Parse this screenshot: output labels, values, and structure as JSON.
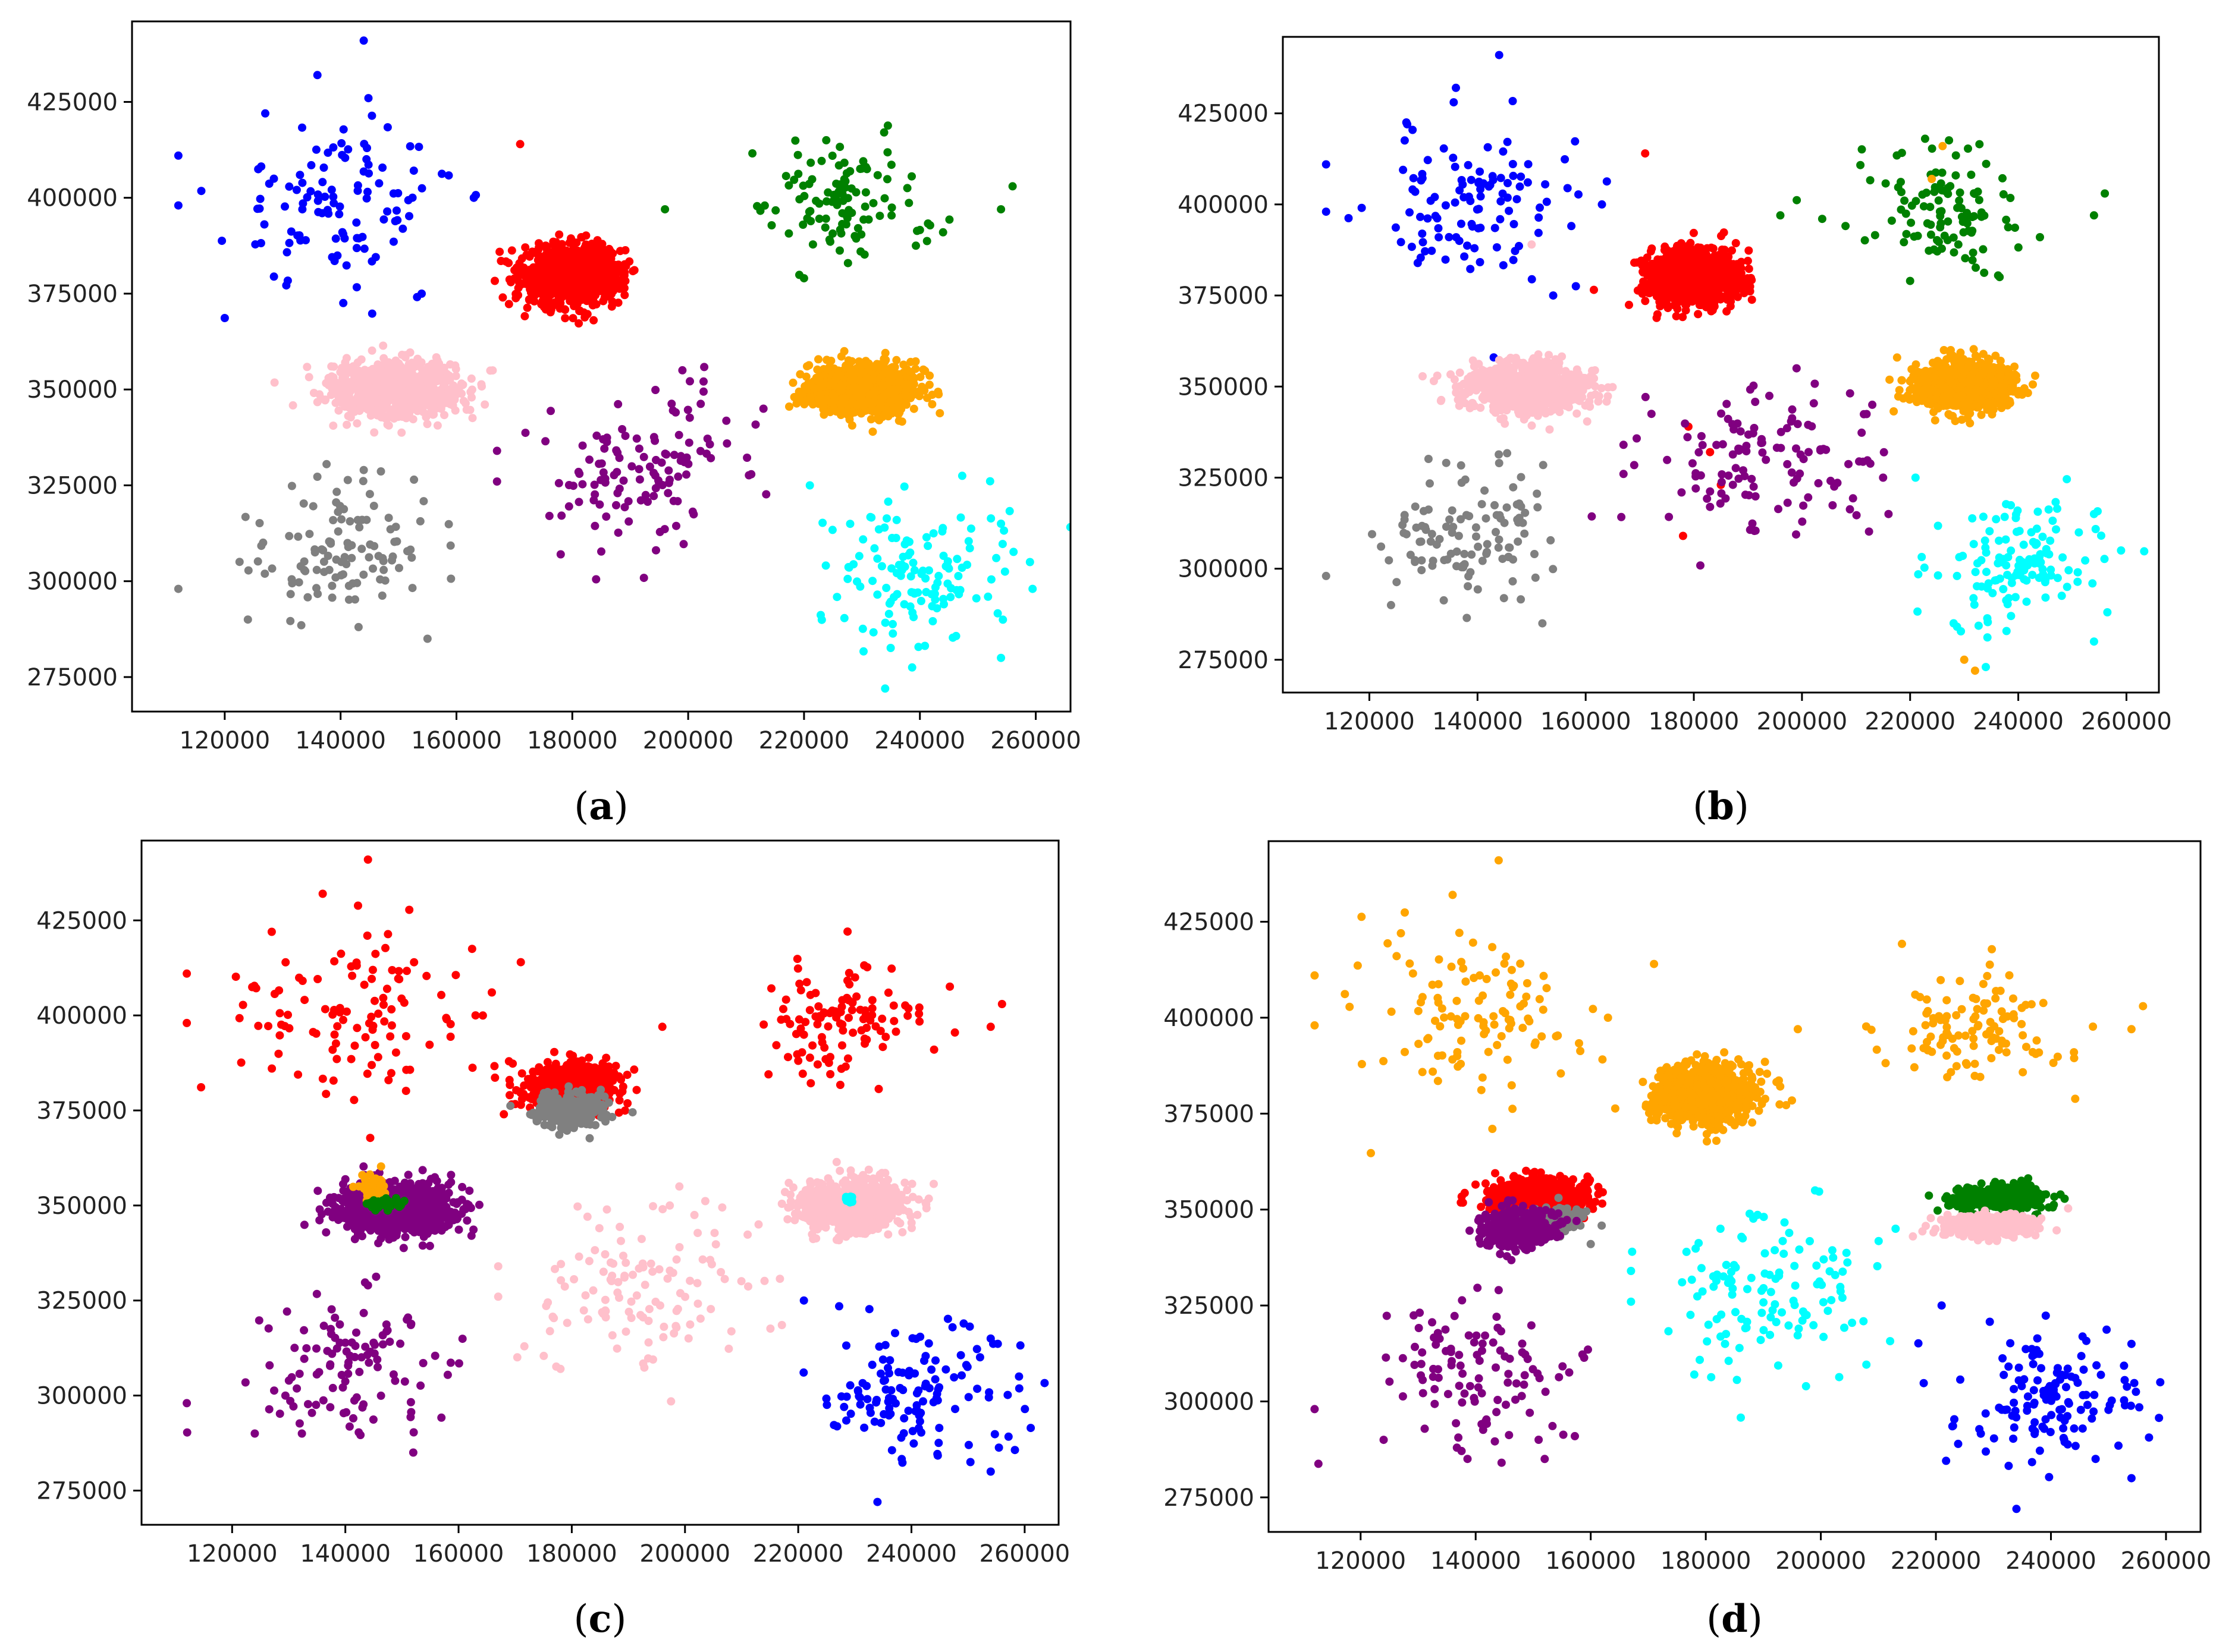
{
  "figure_title": "",
  "chart_data": [
    {
      "id": "a",
      "type": "scatter",
      "caption": {
        "open": "(",
        "letter": "a",
        "close": ")"
      },
      "xlim": [
        104000,
        266000
      ],
      "ylim": [
        266000,
        446000
      ],
      "x_ticks": [
        120000,
        140000,
        160000,
        180000,
        200000,
        220000,
        240000,
        260000
      ],
      "y_ticks": [
        275000,
        300000,
        325000,
        350000,
        375000,
        400000,
        425000
      ],
      "clusters": [
        {
          "color": "#0000ff",
          "name": "blue",
          "cx": 140000,
          "cy": 399000,
          "sx": 10000,
          "sy": 11000,
          "n": 110,
          "extra": [
            [
              112000,
              411000
            ],
            [
              112000,
              398000
            ],
            [
              144000,
              441000
            ],
            [
              136000,
              432000
            ],
            [
              127000,
              422000
            ],
            [
              163000,
              400000
            ],
            [
              154000,
              375000
            ]
          ]
        },
        {
          "color": "#ff0000",
          "name": "red",
          "cx": 180000,
          "cy": 380000,
          "sx": 4200,
          "sy": 3800,
          "n": 900,
          "extra": [
            [
              171000,
              414000
            ],
            [
              168000,
              374000
            ],
            [
              169000,
              383000
            ]
          ]
        },
        {
          "color": "#008000",
          "name": "green",
          "cx": 227000,
          "cy": 398000,
          "sx": 7000,
          "sy": 8000,
          "n": 110,
          "extra": [
            [
              256000,
              403000
            ],
            [
              254000,
              397000
            ],
            [
              244000,
              391000
            ],
            [
              196000,
              397000
            ],
            [
              220000,
              379000
            ]
          ]
        },
        {
          "color": "#ffc0cb",
          "name": "pink",
          "cx": 149000,
          "cy": 350000,
          "sx": 5500,
          "sy": 3500,
          "n": 900,
          "extra": []
        },
        {
          "color": "#ffa500",
          "name": "orange",
          "cx": 230000,
          "cy": 350000,
          "sx": 4500,
          "sy": 3200,
          "n": 900,
          "extra": []
        },
        {
          "color": "#800080",
          "name": "purple",
          "cx": 192000,
          "cy": 329000,
          "sx": 10000,
          "sy": 10000,
          "n": 120,
          "extra": [
            [
              167000,
              334000
            ],
            [
              167000,
              326000
            ],
            [
              199000,
              355000
            ],
            [
              213000,
              345000
            ],
            [
              178000,
              307000
            ]
          ]
        },
        {
          "color": "#808080",
          "name": "gray",
          "cx": 140000,
          "cy": 308000,
          "sx": 8500,
          "sy": 9000,
          "n": 110,
          "extra": [
            [
              112000,
              298000
            ],
            [
              124000,
              290000
            ],
            [
              144000,
              329000
            ],
            [
              155000,
              285000
            ]
          ]
        },
        {
          "color": "#00ffff",
          "name": "cyan",
          "cx": 240000,
          "cy": 301000,
          "sx": 8500,
          "sy": 9000,
          "n": 130,
          "extra": [
            [
              221000,
              325000
            ],
            [
              234000,
              272000
            ],
            [
              254000,
              280000
            ],
            [
              259000,
              305000
            ],
            [
              254000,
              315000
            ]
          ]
        }
      ]
    },
    {
      "id": "b",
      "type": "scatter",
      "caption": {
        "open": "(",
        "letter": "b",
        "close": ")"
      },
      "xlim": [
        104000,
        266000
      ],
      "ylim": [
        266000,
        446000
      ],
      "x_ticks": [
        120000,
        140000,
        160000,
        180000,
        200000,
        220000,
        240000,
        260000
      ],
      "y_ticks": [
        275000,
        300000,
        325000,
        350000,
        375000,
        400000,
        425000
      ],
      "clusters": [
        {
          "color": "#0000ff",
          "name": "blue",
          "cx": 140000,
          "cy": 399000,
          "sx": 10000,
          "sy": 11000,
          "n": 110,
          "extra": [
            [
              112000,
              411000
            ],
            [
              112000,
              398000
            ],
            [
              144000,
              441000
            ],
            [
              136000,
              432000
            ],
            [
              127000,
              422000
            ],
            [
              163000,
              400000
            ],
            [
              154000,
              375000
            ],
            [
              143000,
              358000
            ]
          ]
        },
        {
          "color": "#ff0000",
          "name": "red",
          "cx": 180000,
          "cy": 380000,
          "sx": 4200,
          "sy": 3800,
          "n": 900,
          "extra": [
            [
              171000,
              414000
            ],
            [
              169000,
              384000
            ],
            [
              179000,
              339000
            ],
            [
              183000,
              332000
            ],
            [
              185000,
              323000
            ],
            [
              178000,
              309000
            ]
          ]
        },
        {
          "color": "#008000",
          "name": "green",
          "cx": 227000,
          "cy": 398000,
          "sx": 7000,
          "sy": 8000,
          "n": 110,
          "extra": [
            [
              256000,
              403000
            ],
            [
              254000,
              397000
            ],
            [
              244000,
              391000
            ],
            [
              196000,
              397000
            ],
            [
              220000,
              379000
            ]
          ]
        },
        {
          "color": "#ffc0cb",
          "name": "pink",
          "cx": 149000,
          "cy": 350000,
          "sx": 5500,
          "sy": 3500,
          "n": 900,
          "extra": [
            [
              150000,
              389000
            ]
          ]
        },
        {
          "color": "#ffa500",
          "name": "orange",
          "cx": 230000,
          "cy": 350000,
          "sx": 4500,
          "sy": 3200,
          "n": 900,
          "extra": [
            [
              226000,
              416000
            ],
            [
              224000,
              407000
            ],
            [
              232000,
              272000
            ],
            [
              230000,
              275000
            ]
          ]
        },
        {
          "color": "#800080",
          "name": "purple",
          "cx": 192000,
          "cy": 329000,
          "sx": 10000,
          "sy": 10000,
          "n": 120,
          "extra": [
            [
              167000,
              334000
            ],
            [
              167000,
              326000
            ],
            [
              199000,
              355000
            ],
            [
              213000,
              345000
            ],
            [
              215000,
              325000
            ],
            [
              216000,
              315000
            ]
          ]
        },
        {
          "color": "#808080",
          "name": "gray",
          "cx": 140000,
          "cy": 308000,
          "sx": 8500,
          "sy": 9000,
          "n": 110,
          "extra": [
            [
              112000,
              298000
            ],
            [
              124000,
              290000
            ],
            [
              144000,
              329000
            ],
            [
              152000,
              285000
            ]
          ]
        },
        {
          "color": "#00ffff",
          "name": "cyan",
          "cx": 240000,
          "cy": 301000,
          "sx": 8500,
          "sy": 9000,
          "n": 130,
          "extra": [
            [
              221000,
              325000
            ],
            [
              234000,
              273000
            ],
            [
              254000,
              280000
            ],
            [
              259000,
              305000
            ],
            [
              254000,
              315000
            ]
          ]
        }
      ]
    },
    {
      "id": "c",
      "type": "scatter",
      "caption": {
        "open": "(",
        "letter": "c",
        "close": ")"
      },
      "xlim": [
        104000,
        266000
      ],
      "ylim": [
        266000,
        446000
      ],
      "x_ticks": [
        120000,
        140000,
        160000,
        180000,
        200000,
        220000,
        240000,
        260000
      ],
      "y_ticks": [
        275000,
        300000,
        325000,
        350000,
        375000,
        400000,
        425000
      ],
      "clusters": [
        {
          "color": "#ff0000",
          "name": "red-upper-left",
          "cx": 140000,
          "cy": 399000,
          "sx": 10000,
          "sy": 11000,
          "n": 110,
          "extra": [
            [
              112000,
              411000
            ],
            [
              112000,
              398000
            ],
            [
              144000,
              441000
            ],
            [
              136000,
              432000
            ],
            [
              127000,
              422000
            ],
            [
              163000,
              400000
            ],
            [
              171000,
              414000
            ]
          ]
        },
        {
          "color": "#ff0000",
          "name": "red-upper-right",
          "cx": 227000,
          "cy": 398000,
          "sx": 7000,
          "sy": 8000,
          "n": 110,
          "extra": [
            [
              256000,
              403000
            ],
            [
              254000,
              397000
            ],
            [
              244000,
              391000
            ],
            [
              196000,
              397000
            ]
          ]
        },
        {
          "color": "#ff0000",
          "name": "red-dense",
          "cx": 180000,
          "cy": 381000,
          "sx": 4200,
          "sy": 3200,
          "n": 700,
          "extra": [
            [
              168000,
              374000
            ],
            [
              169000,
              383000
            ]
          ]
        },
        {
          "color": "#808080",
          "name": "gray-dense",
          "cx": 180000,
          "cy": 375000,
          "sx": 3200,
          "sy": 2200,
          "n": 300,
          "extra": []
        },
        {
          "color": "#800080",
          "name": "purple-dense",
          "cx": 149000,
          "cy": 349000,
          "sx": 5000,
          "sy": 3500,
          "n": 900,
          "extra": []
        },
        {
          "color": "#ffa500",
          "name": "orange-small",
          "cx": 145000,
          "cy": 354000,
          "sx": 1200,
          "sy": 1800,
          "n": 60,
          "extra": [
            [
              143000,
              358000
            ]
          ]
        },
        {
          "color": "#008000",
          "name": "green-small",
          "cx": 147000,
          "cy": 350500,
          "sx": 1500,
          "sy": 700,
          "n": 60,
          "extra": []
        },
        {
          "color": "#ffc0cb",
          "name": "pink-sparse",
          "cx": 192000,
          "cy": 329000,
          "sx": 10000,
          "sy": 10000,
          "n": 120,
          "extra": [
            [
              167000,
              334000
            ],
            [
              167000,
              326000
            ],
            [
              199000,
              355000
            ],
            [
              213000,
              345000
            ],
            [
              178000,
              307000
            ]
          ]
        },
        {
          "color": "#ffc0cb",
          "name": "pink-dense",
          "cx": 230000,
          "cy": 350000,
          "sx": 4500,
          "sy": 3200,
          "n": 900,
          "extra": []
        },
        {
          "color": "#00ffff",
          "name": "cyan-small",
          "cx": 229000,
          "cy": 351500,
          "sx": 350,
          "sy": 450,
          "n": 30,
          "extra": []
        },
        {
          "color": "#800080",
          "name": "purple-lower-left",
          "cx": 140000,
          "cy": 308000,
          "sx": 8500,
          "sy": 9000,
          "n": 110,
          "extra": [
            [
              112000,
              298000
            ],
            [
              124000,
              290000
            ],
            [
              144000,
              329000
            ],
            [
              152000,
              285000
            ]
          ]
        },
        {
          "color": "#0000ff",
          "name": "blue-lower-right",
          "cx": 240000,
          "cy": 301000,
          "sx": 8500,
          "sy": 9000,
          "n": 130,
          "extra": [
            [
              221000,
              325000
            ],
            [
              234000,
              272000
            ],
            [
              254000,
              280000
            ],
            [
              259000,
              305000
            ],
            [
              254000,
              315000
            ]
          ]
        }
      ]
    },
    {
      "id": "d",
      "type": "scatter",
      "caption": {
        "open": "(",
        "letter": "d",
        "close": ")"
      },
      "xlim": [
        104000,
        266000
      ],
      "ylim": [
        266000,
        446000
      ],
      "x_ticks": [
        120000,
        140000,
        160000,
        180000,
        200000,
        220000,
        240000,
        260000
      ],
      "y_ticks": [
        275000,
        300000,
        325000,
        350000,
        375000,
        400000,
        425000
      ],
      "clusters": [
        {
          "color": "#ffa500",
          "name": "orange-upper-left",
          "cx": 140000,
          "cy": 399000,
          "sx": 10000,
          "sy": 11000,
          "n": 110,
          "extra": [
            [
              112000,
              411000
            ],
            [
              112000,
              398000
            ],
            [
              144000,
              441000
            ],
            [
              136000,
              432000
            ],
            [
              127000,
              422000
            ],
            [
              163000,
              400000
            ],
            [
              171000,
              414000
            ]
          ]
        },
        {
          "color": "#ffa500",
          "name": "orange-upper-right",
          "cx": 227000,
          "cy": 398000,
          "sx": 7000,
          "sy": 8000,
          "n": 110,
          "extra": [
            [
              256000,
              403000
            ],
            [
              254000,
              397000
            ],
            [
              244000,
              391000
            ],
            [
              196000,
              397000
            ]
          ]
        },
        {
          "color": "#ffa500",
          "name": "orange-dense",
          "cx": 180000,
          "cy": 380000,
          "sx": 4200,
          "sy": 3800,
          "n": 900,
          "extra": []
        },
        {
          "color": "#ff0000",
          "name": "red-dense",
          "cx": 151000,
          "cy": 354000,
          "sx": 5000,
          "sy": 2200,
          "n": 450,
          "extra": []
        },
        {
          "color": "#808080",
          "name": "gray-dense",
          "cx": 153000,
          "cy": 347000,
          "sx": 2800,
          "sy": 1800,
          "n": 150,
          "extra": [
            [
              160000,
              341000
            ]
          ]
        },
        {
          "color": "#800080",
          "name": "purple-dense",
          "cx": 147000,
          "cy": 345000,
          "sx": 3300,
          "sy": 2500,
          "n": 350,
          "extra": []
        },
        {
          "color": "#008000",
          "name": "green-dense",
          "cx": 231000,
          "cy": 353000,
          "sx": 4200,
          "sy": 1500,
          "n": 450,
          "extra": []
        },
        {
          "color": "#ffc0cb",
          "name": "pink-dense",
          "cx": 229000,
          "cy": 346000,
          "sx": 4200,
          "sy": 1500,
          "n": 400,
          "extra": [
            [
              216000,
              343000
            ]
          ]
        },
        {
          "color": "#00ffff",
          "name": "cyan-sparse",
          "cx": 192000,
          "cy": 329000,
          "sx": 10000,
          "sy": 10000,
          "n": 120,
          "extra": [
            [
              167000,
              334000
            ],
            [
              167000,
              326000
            ],
            [
              199000,
              355000
            ],
            [
              213000,
              345000
            ],
            [
              178000,
              307000
            ]
          ]
        },
        {
          "color": "#800080",
          "name": "purple-lower-left",
          "cx": 140000,
          "cy": 308000,
          "sx": 8500,
          "sy": 9000,
          "n": 110,
          "extra": [
            [
              112000,
              298000
            ],
            [
              124000,
              290000
            ],
            [
              144000,
              329000
            ],
            [
              152000,
              285000
            ]
          ]
        },
        {
          "color": "#0000ff",
          "name": "blue-lower-right",
          "cx": 240000,
          "cy": 301000,
          "sx": 8500,
          "sy": 9000,
          "n": 130,
          "extra": [
            [
              221000,
              325000
            ],
            [
              234000,
              272000
            ],
            [
              254000,
              280000
            ],
            [
              259000,
              305000
            ],
            [
              254000,
              315000
            ]
          ]
        }
      ]
    }
  ]
}
